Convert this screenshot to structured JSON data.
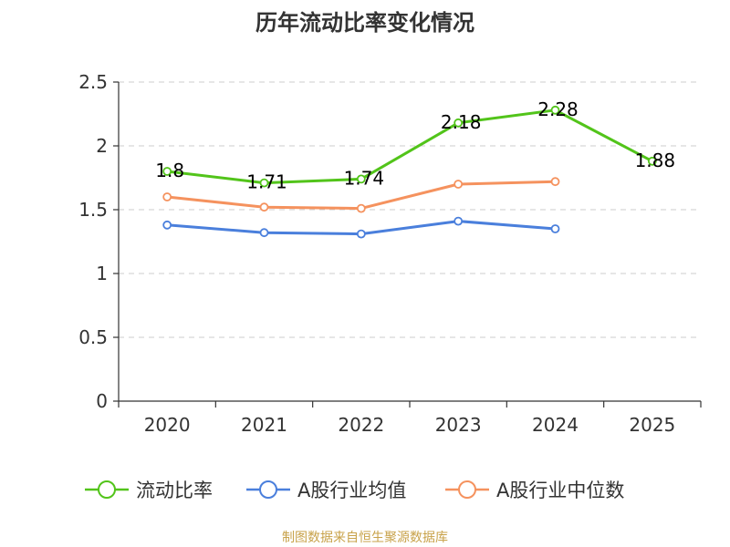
{
  "chart_data": {
    "type": "line",
    "title": "历年流动比率变化情况",
    "categories": [
      "2020",
      "2021",
      "2022",
      "2023",
      "2024",
      "2025"
    ],
    "ylim": [
      0,
      2.5
    ],
    "yticks": [
      "0",
      "0.5",
      "1",
      "1.5",
      "2",
      "2.5"
    ],
    "ytick_values": [
      0,
      0.5,
      1,
      1.5,
      2,
      2.5
    ],
    "grid": true,
    "legend_position": "bottom",
    "series": [
      {
        "name": "流动比率",
        "color": "#52c41a",
        "values": [
          1.8,
          1.71,
          1.74,
          2.18,
          2.28,
          1.88
        ],
        "labels": [
          "1.8",
          "1.71",
          "1.74",
          "2.18",
          "2.28",
          "1.88"
        ],
        "show_labels": true
      },
      {
        "name": "A股行业均值",
        "color": "#4a7fdc",
        "values": [
          1.38,
          1.32,
          1.31,
          1.41,
          1.35,
          null
        ],
        "show_labels": false
      },
      {
        "name": "A股行业中位数",
        "color": "#f5925e",
        "values": [
          1.6,
          1.52,
          1.51,
          1.7,
          1.72,
          null
        ],
        "show_labels": false
      }
    ]
  },
  "source_text": "制图数据来自恒生聚源数据库",
  "source_color": "#c8a24a"
}
